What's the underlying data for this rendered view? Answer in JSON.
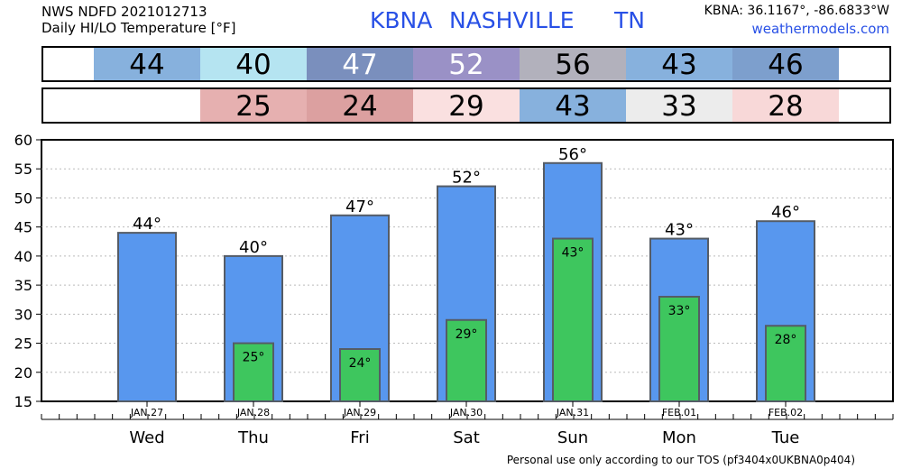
{
  "header": {
    "line1": "NWS NDFD 2021012713",
    "line2": "Daily HI/LO Temperature [°F]",
    "station_id": "KBNA",
    "station_name": "NASHVILLE",
    "state": "TN",
    "coords": "KBNA: 36.1167°, -86.6833°W",
    "site": "weathermodels.com"
  },
  "footer": "Personal use only according to our TOS (pf3404x0UKBNA0p404)",
  "hi_strip": [
    {
      "text": "44",
      "bg": "#87b1dd",
      "fg": "#000000"
    },
    {
      "text": "40",
      "bg": "#b5e4f1",
      "fg": "#000000"
    },
    {
      "text": "47",
      "bg": "#7a8fbd",
      "fg": "#ffffff"
    },
    {
      "text": "52",
      "bg": "#9a91c6",
      "fg": "#ffffff"
    },
    {
      "text": "56",
      "bg": "#b2b1bc",
      "fg": "#000000"
    },
    {
      "text": "43",
      "bg": "#87b1dd",
      "fg": "#000000"
    },
    {
      "text": "46",
      "bg": "#7d9fcd",
      "fg": "#000000"
    }
  ],
  "lo_strip": [
    {
      "text": "",
      "bg": "#ffffff",
      "fg": "#000000"
    },
    {
      "text": "25",
      "bg": "#e6b0b0",
      "fg": "#000000"
    },
    {
      "text": "24",
      "bg": "#dca0a0",
      "fg": "#000000"
    },
    {
      "text": "29",
      "bg": "#fae0e0",
      "fg": "#000000"
    },
    {
      "text": "43",
      "bg": "#87b1dd",
      "fg": "#000000"
    },
    {
      "text": "33",
      "bg": "#ececec",
      "fg": "#000000"
    },
    {
      "text": "28",
      "bg": "#f8d8d8",
      "fg": "#000000"
    }
  ],
  "chart_data": {
    "type": "bar",
    "categories": [
      "Wed",
      "Thu",
      "Fri",
      "Sat",
      "Sun",
      "Mon",
      "Tue"
    ],
    "dates": [
      "JAN.27",
      "JAN.28",
      "JAN.29",
      "JAN.30",
      "JAN.31",
      "FEB.01",
      "FEB.02"
    ],
    "series": [
      {
        "name": "HI",
        "values": [
          44,
          40,
          47,
          52,
          56,
          43,
          46
        ],
        "color": "#5897ee"
      },
      {
        "name": "LO",
        "values": [
          null,
          25,
          24,
          29,
          43,
          33,
          28
        ],
        "color": "#3ec65e"
      }
    ],
    "hi_labels": [
      "44°",
      "40°",
      "47°",
      "52°",
      "56°",
      "43°",
      "46°"
    ],
    "lo_labels": [
      "",
      "25°",
      "24°",
      "29°",
      "43°",
      "33°",
      "28°"
    ],
    "ylim": [
      15,
      60
    ],
    "yticks": [
      15,
      20,
      25,
      30,
      35,
      40,
      45,
      50,
      55,
      60
    ],
    "grid": true
  }
}
